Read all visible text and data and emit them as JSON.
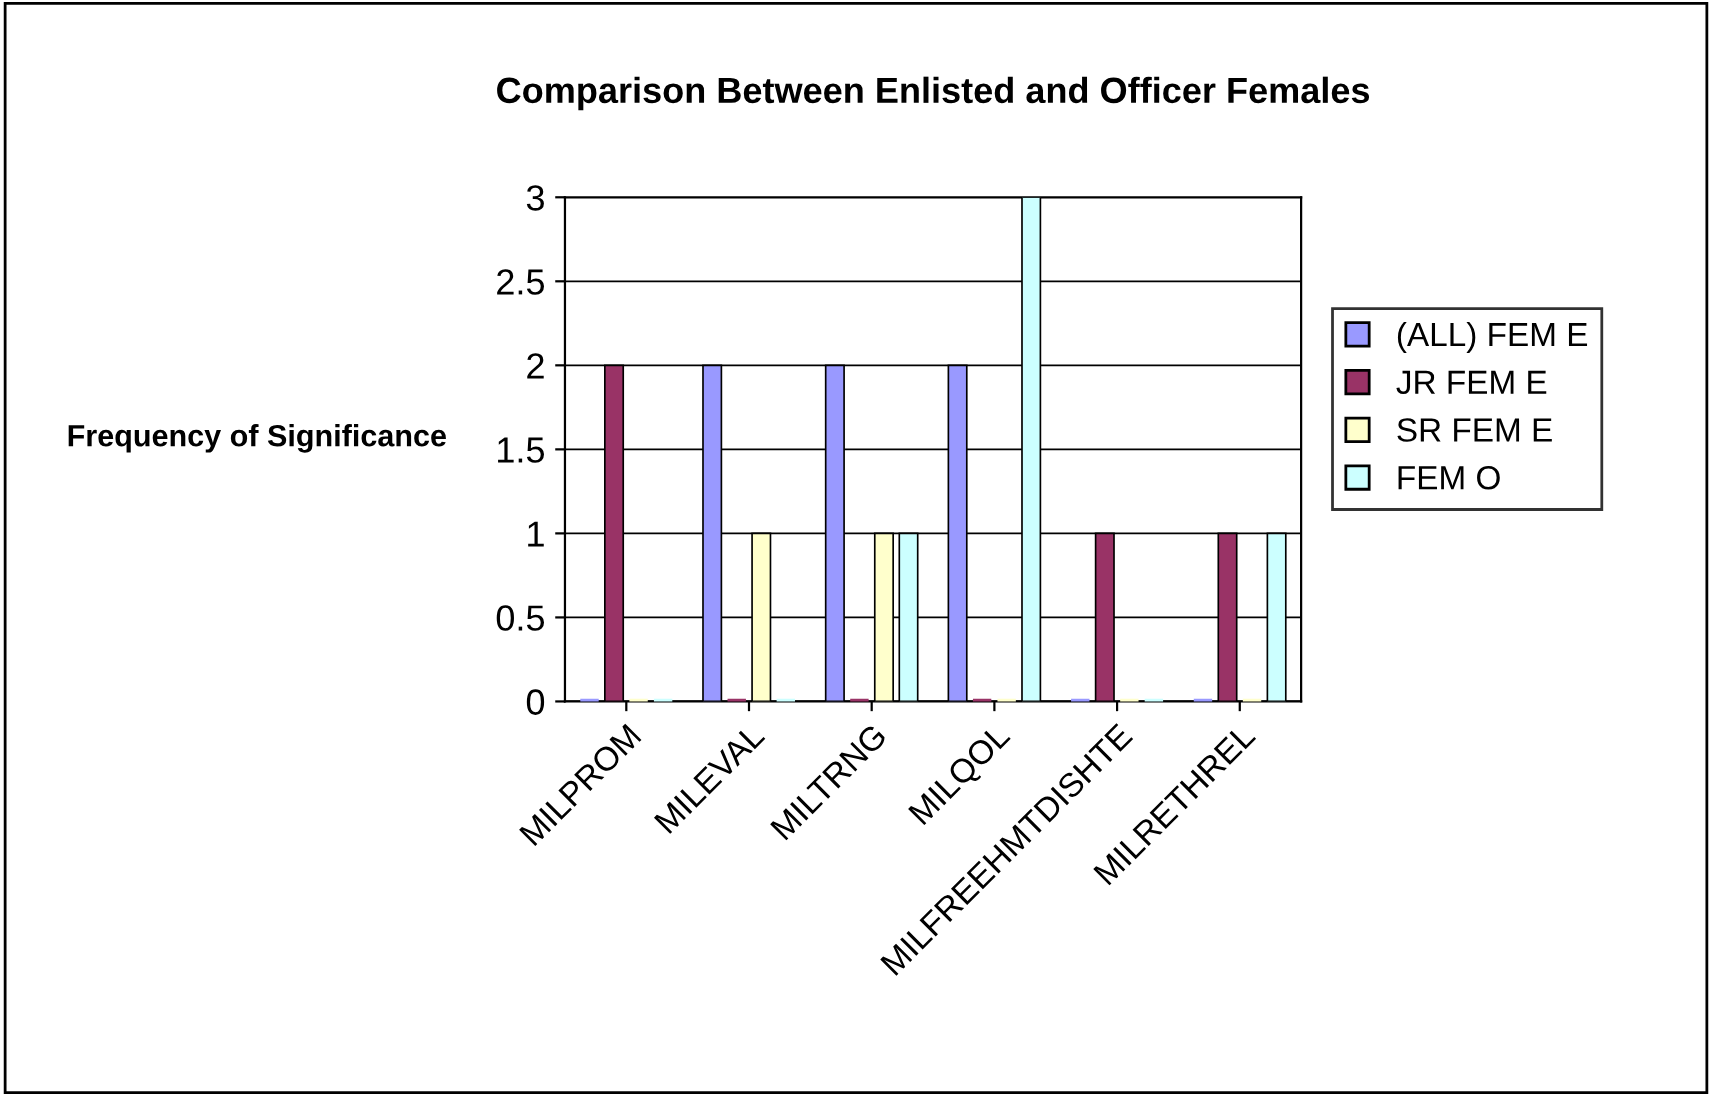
{
  "chart_data": {
    "type": "bar",
    "title": "Comparison Between Enlisted and Officer Females",
    "ylabel": "Frequency of Significance",
    "categories": [
      "MILPROM",
      "MILEVAL",
      "MILTRNG",
      "MILQOL",
      "MILFREEHMTDISHTE",
      "MILRETHREL"
    ],
    "series": [
      {
        "name": "(ALL) FEM E",
        "color": "#9999ff",
        "values": [
          0,
          2,
          2,
          2,
          0,
          0
        ]
      },
      {
        "name": "JR FEM E",
        "color": "#993366",
        "values": [
          2,
          0,
          0,
          0,
          1,
          1
        ]
      },
      {
        "name": "SR FEM E",
        "color": "#ffffcc",
        "values": [
          0,
          1,
          1,
          0,
          0,
          0
        ]
      },
      {
        "name": "FEM O",
        "color": "#ccffff",
        "values": [
          0,
          0,
          1,
          3,
          0,
          1
        ]
      }
    ],
    "ylim": [
      0,
      3
    ],
    "yticks": [
      0,
      0.5,
      1,
      1.5,
      2,
      2.5,
      3
    ],
    "grid": "y",
    "legend": "right"
  }
}
